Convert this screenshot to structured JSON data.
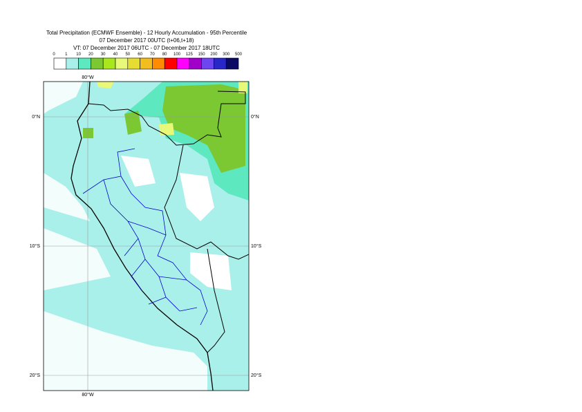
{
  "header": {
    "title": "Total Precipitation (ECMWF Ensemble) - 12 Hourly Accumulation - 95th Percentile",
    "subtitle": "07 December 2017 00UTC (t+06,t+18)",
    "valid_time": "VT: 07 December 2017 06UTC - 07 December 2017 18UTC"
  },
  "legend": {
    "labels": [
      "0",
      "1",
      "10",
      "20",
      "30",
      "40",
      "50",
      "60",
      "70",
      "80",
      "100",
      "125",
      "150",
      "200",
      "300",
      "500"
    ],
    "colors": [
      "#ffffff",
      "#aaf0ea",
      "#5ee8c0",
      "#7cc832",
      "#a8e61e",
      "#e8f878",
      "#e6dc32",
      "#f0be1e",
      "#ff8c00",
      "#ff0000",
      "#ff00ff",
      "#a000c8",
      "#6e46f0",
      "#2828c8",
      "#0a0a64"
    ]
  },
  "map": {
    "lon_labels": [
      "80°W"
    ],
    "lat_labels": [
      "0°N",
      "10°S",
      "20°S"
    ]
  }
}
